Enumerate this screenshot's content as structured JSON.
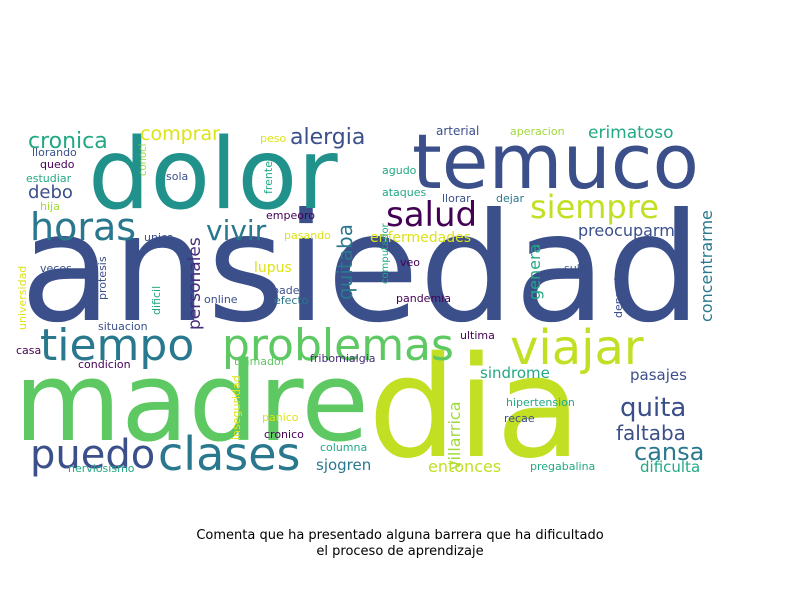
{
  "chart_data": {
    "type": "wordcloud",
    "caption_lines": [
      "Comenta que ha presentado alguna barrera que ha dificultado",
      "el proceso de aprendizaje"
    ],
    "words": [
      {
        "text": "ansiedad",
        "color": "#3b4f8a"
      },
      {
        "text": "madre",
        "color": "#5ec962"
      },
      {
        "text": "dia",
        "color": "#c2df23"
      },
      {
        "text": "dolor",
        "color": "#21918c"
      },
      {
        "text": "temuco",
        "color": "#3b4f8a"
      },
      {
        "text": "problemas",
        "color": "#5ec962"
      },
      {
        "text": "viajar",
        "color": "#c2df23"
      },
      {
        "text": "tiempo",
        "color": "#2a788e"
      },
      {
        "text": "clases",
        "color": "#2a788e"
      },
      {
        "text": "horas",
        "color": "#2a788e"
      },
      {
        "text": "puedo",
        "color": "#3b4f8a"
      },
      {
        "text": "salud",
        "color": "#440154"
      },
      {
        "text": "siempre",
        "color": "#c2df23"
      },
      {
        "text": "vivir",
        "color": "#2a788e"
      },
      {
        "text": "cronica",
        "color": "#22a884"
      },
      {
        "text": "quita",
        "color": "#3b4f8a"
      },
      {
        "text": "cansa",
        "color": "#2a788e"
      },
      {
        "text": "alergia",
        "color": "#3b4f8a"
      },
      {
        "text": "faltaba",
        "color": "#3b4f8a"
      },
      {
        "text": "comprar",
        "color": "#dde318"
      },
      {
        "text": "erimatoso",
        "color": "#22a884"
      },
      {
        "text": "debo",
        "color": "#3b4f8a"
      },
      {
        "text": "personales",
        "color": "#472d7b"
      },
      {
        "text": "quitaba",
        "color": "#2a788e"
      },
      {
        "text": "villarrica",
        "color": "#a0da39"
      },
      {
        "text": "genera",
        "color": "#22a884"
      },
      {
        "text": "concentrarme",
        "color": "#2a788e"
      },
      {
        "text": "preocuparme",
        "color": "#3b4f8a"
      },
      {
        "text": "enfermedades",
        "color": "#dde318"
      },
      {
        "text": "sindrome",
        "color": "#22a884"
      },
      {
        "text": "pasajes",
        "color": "#3b4f8a"
      },
      {
        "text": "entonces",
        "color": "#c2df23"
      },
      {
        "text": "dificulta",
        "color": "#22a884"
      },
      {
        "text": "sjogren",
        "color": "#2a788e"
      },
      {
        "text": "lupus",
        "color": "#dde318"
      },
      {
        "text": "arterial",
        "color": "#3b4f8a"
      },
      {
        "text": "aperacion",
        "color": "#a0da39"
      },
      {
        "text": "peso",
        "color": "#dde318"
      },
      {
        "text": "llorando",
        "color": "#3b4f8a"
      },
      {
        "text": "quedo",
        "color": "#440154"
      },
      {
        "text": "estudiar",
        "color": "#22a884"
      },
      {
        "text": "hija",
        "color": "#a0da39"
      },
      {
        "text": "conoci",
        "color": "#a0da39"
      },
      {
        "text": "sola",
        "color": "#3b4f8a"
      },
      {
        "text": "frente",
        "color": "#22a884"
      },
      {
        "text": "agudo",
        "color": "#22a884"
      },
      {
        "text": "ataques",
        "color": "#22a884"
      },
      {
        "text": "llorar",
        "color": "#3b4f8a"
      },
      {
        "text": "dejar",
        "color": "#2a788e"
      },
      {
        "text": "empeoro",
        "color": "#440154"
      },
      {
        "text": "unica",
        "color": "#3b4f8a"
      },
      {
        "text": "pasando",
        "color": "#dde318"
      },
      {
        "text": "computador",
        "color": "#22a884"
      },
      {
        "text": "veo",
        "color": "#440154"
      },
      {
        "text": "subi",
        "color": "#3b4f8a"
      },
      {
        "text": "depresion",
        "color": "#3b4f8a"
      },
      {
        "text": "universidad",
        "color": "#dde318"
      },
      {
        "text": "veces",
        "color": "#3b4f8a"
      },
      {
        "text": "protesis",
        "color": "#3b4f8a"
      },
      {
        "text": "dificil",
        "color": "#22a884"
      },
      {
        "text": "online",
        "color": "#3b4f8a"
      },
      {
        "text": "padece",
        "color": "#3b4f8a"
      },
      {
        "text": "efecto",
        "color": "#2a788e"
      },
      {
        "text": "pandemia",
        "color": "#440154"
      },
      {
        "text": "ultima",
        "color": "#440154"
      },
      {
        "text": "situacion",
        "color": "#3b4f8a"
      },
      {
        "text": "casa",
        "color": "#440154"
      },
      {
        "text": "condicion",
        "color": "#440154"
      },
      {
        "text": "tramadol",
        "color": "#5ec962"
      },
      {
        "text": "fribomialgia",
        "color": "#472d7b"
      },
      {
        "text": "inseguridad",
        "color": "#dde318"
      },
      {
        "text": "hipertension",
        "color": "#22a884"
      },
      {
        "text": "recae",
        "color": "#3b4f8a"
      },
      {
        "text": "panico",
        "color": "#dde318"
      },
      {
        "text": "cronico",
        "color": "#440154"
      },
      {
        "text": "columna",
        "color": "#22a884"
      },
      {
        "text": "nerviosismo",
        "color": "#22a884"
      },
      {
        "text": "pregabalina",
        "color": "#22a884"
      }
    ]
  }
}
